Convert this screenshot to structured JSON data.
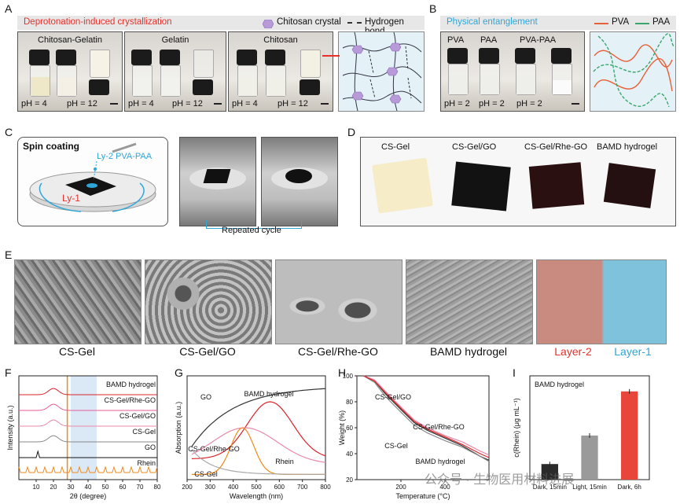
{
  "panels": {
    "A": {
      "label": "A",
      "title": "Deprotonation-induced crystallization",
      "legend": [
        {
          "name": "Chitosan crystal",
          "icon": "hexagon-icon"
        },
        {
          "name": "Hydrogen bond",
          "icon": "dashed-line-icon"
        }
      ],
      "photos": [
        {
          "title": "Chitosan-Gelatin",
          "ph_left": "pH = 4",
          "ph_right": "pH = 12"
        },
        {
          "title": "Gelatin",
          "ph_left": "pH = 4",
          "ph_right": "pH = 12"
        },
        {
          "title": "Chitosan",
          "ph_left": "pH = 4",
          "ph_right": "pH = 12"
        }
      ]
    },
    "B": {
      "label": "B",
      "title": "Physical entanglement",
      "legend": [
        {
          "name": "PVA",
          "color": "#e8603a"
        },
        {
          "name": "PAA",
          "color": "#3aa66a"
        }
      ],
      "vials": [
        "PVA",
        "PAA",
        "PVA-PAA"
      ],
      "ph": [
        "pH = 2",
        "pH = 2",
        "pH = 2"
      ]
    },
    "C": {
      "label": "C",
      "title": "Spin coating",
      "layer2": "Ly-2 PVA-PAA",
      "layer1": "Ly-1",
      "caption": "Repeated cycle"
    },
    "D": {
      "label": "D",
      "samples": [
        "CS-Gel",
        "CS-Gel/GO",
        "CS-Gel/Rhe-GO",
        "BAMD hydrogel"
      ]
    },
    "E": {
      "label": "E",
      "images": [
        "CS-Gel",
        "CS-Gel/GO",
        "CS-Gel/Rhe-GO",
        "BAMD hydrogel"
      ],
      "layer2": "Layer-2",
      "layer1": "Layer-1"
    },
    "F": {
      "label": "F"
    },
    "G": {
      "label": "G"
    },
    "H": {
      "label": "H"
    },
    "I": {
      "label": "I"
    }
  },
  "colors": {
    "red_accent": "#e8302a",
    "blue_accent": "#2fa6d8",
    "pva": "#e8603a",
    "paa": "#3aa66a"
  },
  "watermark": "公众号 · 生物医用材料进展",
  "chart_data": [
    {
      "type": "line",
      "panel": "F",
      "xlabel": "2θ (degree)",
      "ylabel": "Intensity (a.u.)",
      "xlim": [
        0,
        80
      ],
      "xticks": [
        10,
        20,
        30,
        40,
        50,
        60,
        70,
        80
      ],
      "series": [
        {
          "name": "BAMD hydrogel",
          "color": "#d8232a",
          "offset": 6
        },
        {
          "name": "CS-Gel/Rhe-GO",
          "color": "#e85a9a",
          "offset": 5
        },
        {
          "name": "CS-Gel/GO",
          "color": "#e889a8",
          "offset": 4
        },
        {
          "name": "CS-Gel",
          "color": "#888888",
          "offset": 3
        },
        {
          "name": "GO",
          "color": "#111111",
          "offset": 2
        },
        {
          "name": "Rhein",
          "color": "#f08a1c",
          "offset": 1
        }
      ],
      "highlight_band": [
        30,
        45
      ],
      "marker_line": 28
    },
    {
      "type": "line",
      "panel": "G",
      "xlabel": "Wavelength (nm)",
      "ylabel": "Absorption (a.u.)",
      "xlim": [
        200,
        800
      ],
      "xticks": [
        200,
        300,
        400,
        500,
        600,
        700,
        800
      ],
      "series": [
        {
          "name": "GO",
          "color": "#333333"
        },
        {
          "name": "BAMD hydrogel",
          "color": "#d8232a"
        },
        {
          "name": "CS-Gel/Rhe-GO",
          "color": "#e889a8"
        },
        {
          "name": "Rhein",
          "color": "#f08a1c"
        },
        {
          "name": "CS-Gel",
          "color": "#aaaaaa"
        }
      ]
    },
    {
      "type": "line",
      "panel": "H",
      "xlabel": "Temperature (°C)",
      "ylabel": "Weight (%)",
      "xlim": [
        0,
        600
      ],
      "ylim": [
        20,
        100
      ],
      "xticks": [
        200,
        400
      ],
      "yticks": [
        20,
        40,
        60,
        80,
        100
      ],
      "series": [
        {
          "name": "CS-Gel/GO",
          "color": "#333333",
          "x": [
            30,
            80,
            130,
            200,
            260,
            320,
            400,
            480,
            560,
            600
          ],
          "y": [
            100,
            96,
            86,
            74,
            64,
            58,
            52,
            46,
            38,
            35
          ]
        },
        {
          "name": "CS-Gel/Rhe-GO",
          "color": "#e889a8",
          "x": [
            30,
            80,
            130,
            200,
            260,
            320,
            400,
            480,
            560,
            600
          ],
          "y": [
            100,
            97,
            88,
            76,
            66,
            60,
            54,
            49,
            42,
            39
          ]
        },
        {
          "name": "CS-Gel",
          "color": "#888888",
          "x": [
            30,
            80,
            130,
            200,
            260,
            320,
            400,
            480,
            560,
            600
          ],
          "y": [
            100,
            95,
            84,
            72,
            62,
            56,
            50,
            45,
            38,
            34
          ]
        },
        {
          "name": "BAMD hydrogel",
          "color": "#d8232a",
          "x": [
            30,
            80,
            130,
            200,
            260,
            320,
            400,
            480,
            560,
            600
          ],
          "y": [
            100,
            96,
            87,
            75,
            65,
            59,
            53,
            47,
            40,
            37
          ]
        }
      ]
    },
    {
      "type": "bar",
      "panel": "I",
      "title": "BAMD hydrogel",
      "ylabel": "c(Rhein) (μg mL⁻¹)",
      "ylim": [
        0,
        40
      ],
      "categories": [
        "Dark, 15min",
        "Light, 15min",
        "Dark, 6h"
      ],
      "values": [
        6,
        17,
        34
      ],
      "colors": [
        "#2a2a2a",
        "#9a9a9a",
        "#e8463a"
      ]
    }
  ]
}
